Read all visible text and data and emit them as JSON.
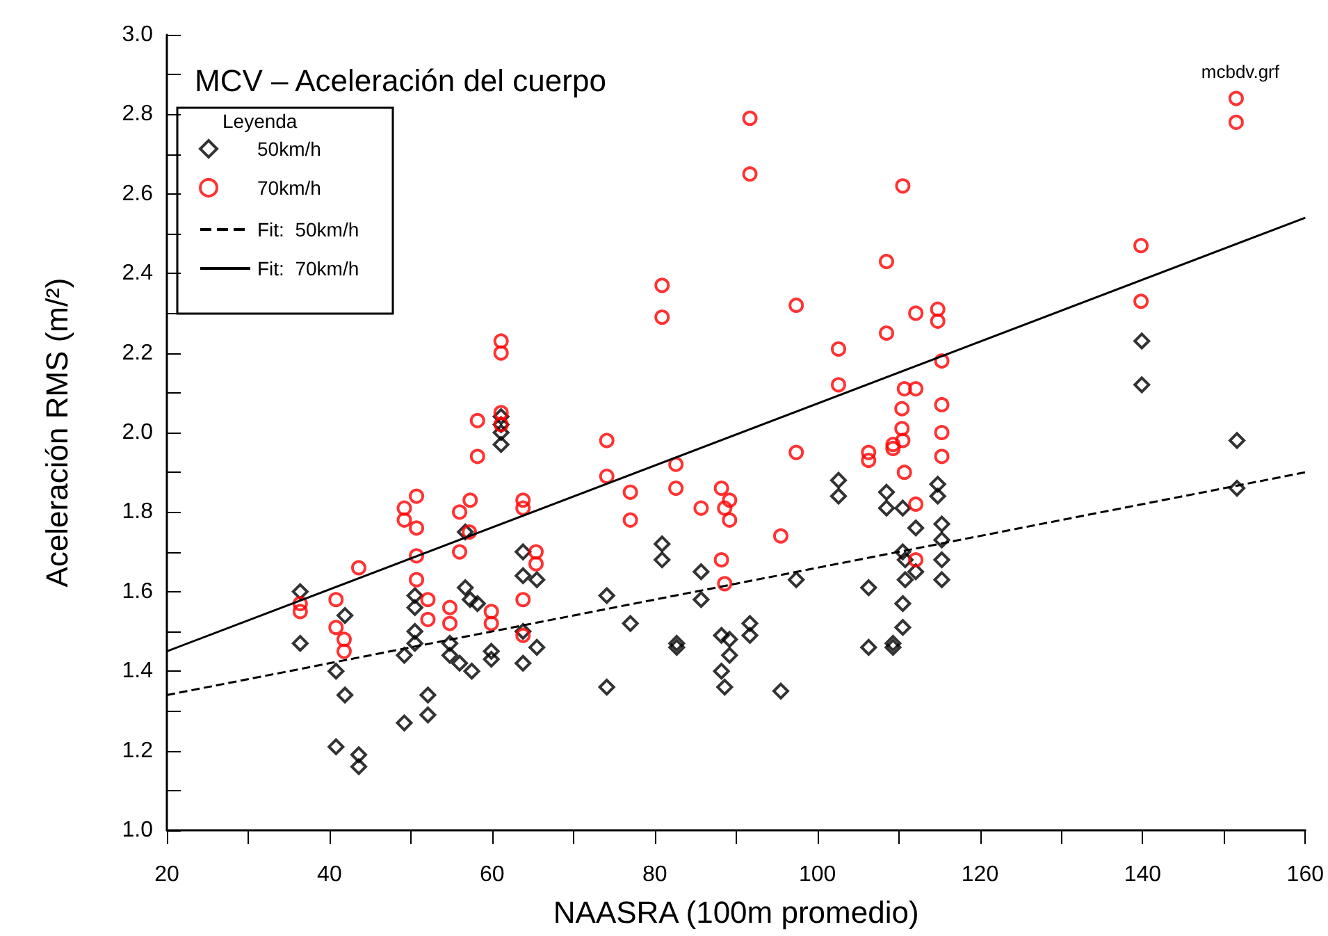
{
  "chart_data": {
    "type": "scatter",
    "title": "MCV – Aceleración del cuerpo",
    "xlabel": "NAASRA (100m promedio)",
    "ylabel": "Aceleración RMS (m/²)",
    "legend_title": "Leyenda",
    "legend": "top left",
    "grid": false,
    "annotations": [
      "mcbdv.grf"
    ],
    "xlim": [
      20,
      160
    ],
    "xticks": [
      20,
      {
        "value": 30,
        "label": null
      },
      40,
      {
        "value": 50,
        "label": null
      },
      60,
      {
        "value": 70,
        "label": null
      },
      80,
      {
        "value": 90,
        "label": null
      },
      100,
      {
        "value": 110,
        "label": null
      },
      120,
      {
        "value": 130,
        "label": null
      },
      140,
      {
        "value": 150,
        "label": null
      },
      160
    ],
    "ylim": [
      1.0,
      3.0
    ],
    "yticks": [
      {
        "value": 1.0,
        "label": "1.0"
      },
      {
        "value": 1.1,
        "label": null
      },
      1.2,
      {
        "value": 1.3,
        "label": null
      },
      1.4,
      {
        "value": 1.5,
        "label": null
      },
      1.6,
      {
        "value": 1.7,
        "label": null
      },
      1.8,
      {
        "value": 1.9,
        "label": null
      },
      {
        "value": 2.0,
        "label": "2.0"
      },
      {
        "value": 2.1,
        "label": null
      },
      2.2,
      {
        "value": 2.3,
        "label": null
      },
      2.4,
      {
        "value": 2.5,
        "label": null
      },
      2.6,
      {
        "value": 2.7,
        "label": null
      },
      2.8,
      {
        "value": 2.9,
        "label": null
      },
      {
        "value": 3.0,
        "label": "3.0"
      }
    ],
    "series": [
      {
        "name": "50km/h",
        "type": "scatter",
        "marker": "diamond",
        "color": "#000000",
        "x": [
          36.4,
          36.4,
          41.9,
          40.8,
          41.9,
          40.8,
          43.6,
          43.6,
          49.2,
          49.2,
          50.5,
          50.5,
          50.5,
          50.5,
          52.1,
          52.1,
          54.8,
          54.8,
          56.0,
          57.5,
          56.7,
          57.3,
          58.2,
          56.7,
          59.9,
          59.9,
          61.1,
          61.1,
          61.1,
          61.1,
          63.8,
          63.8,
          65.5,
          63.8,
          65.5,
          63.8,
          74.1,
          74.1,
          77.0,
          80.9,
          80.9,
          82.7,
          82.7,
          85.7,
          85.7,
          88.2,
          89.2,
          89.2,
          88.2,
          88.6,
          91.7,
          91.7,
          95.5,
          97.4,
          102.6,
          102.6,
          108.5,
          108.5,
          106.3,
          106.3,
          109.3,
          109.3,
          110.5,
          110.5,
          110.8,
          110.8,
          110.5,
          110.5,
          112.1,
          112.1,
          114.8,
          114.8,
          115.3,
          115.3,
          115.3,
          115.3,
          139.9,
          139.9,
          151.6,
          151.6
        ],
        "values": [
          1.6,
          1.47,
          1.54,
          1.4,
          1.34,
          1.21,
          1.19,
          1.16,
          1.27,
          1.44,
          1.59,
          1.56,
          1.5,
          1.47,
          1.34,
          1.29,
          1.47,
          1.44,
          1.42,
          1.4,
          1.61,
          1.58,
          1.57,
          1.75,
          1.45,
          1.43,
          2.04,
          2.02,
          2.0,
          1.97,
          1.7,
          1.64,
          1.63,
          1.5,
          1.46,
          1.42,
          1.59,
          1.36,
          1.52,
          1.72,
          1.68,
          1.47,
          1.46,
          1.65,
          1.58,
          1.49,
          1.48,
          1.44,
          1.4,
          1.36,
          1.52,
          1.49,
          1.35,
          1.63,
          1.88,
          1.84,
          1.85,
          1.81,
          1.61,
          1.46,
          1.47,
          1.46,
          1.81,
          1.7,
          1.68,
          1.63,
          1.57,
          1.51,
          1.76,
          1.65,
          1.87,
          1.84,
          1.77,
          1.73,
          1.68,
          1.63,
          2.23,
          2.12,
          1.98,
          1.86
        ]
      },
      {
        "name": "70km/h",
        "type": "scatter",
        "marker": "circle",
        "color": "#ff0000",
        "x": [
          36.4,
          36.4,
          40.8,
          40.8,
          41.8,
          41.8,
          43.6,
          49.2,
          49.2,
          50.7,
          50.7,
          50.7,
          50.7,
          52.1,
          52.1,
          54.8,
          54.8,
          56.0,
          56.0,
          57.3,
          57.2,
          58.2,
          58.2,
          59.9,
          59.9,
          61.1,
          61.1,
          61.1,
          61.1,
          63.8,
          63.8,
          63.8,
          63.8,
          65.4,
          65.4,
          91.7,
          91.7,
          80.9,
          80.9,
          97.4,
          102.6,
          102.6,
          74.1,
          74.1,
          77.0,
          77.0,
          82.6,
          82.6,
          85.7,
          88.2,
          89.2,
          88.6,
          89.2,
          95.5,
          88.2,
          88.6,
          97.4,
          108.5,
          112.1,
          114.8,
          114.8,
          108.5,
          115.3,
          110.7,
          112.1,
          110.4,
          115.3,
          110.4,
          115.3,
          110.5,
          109.3,
          109.3,
          106.3,
          106.3,
          110.7,
          115.3,
          112.1,
          112.1,
          110.5,
          139.8,
          139.8,
          151.5,
          151.5
        ],
        "values": [
          1.57,
          1.55,
          1.58,
          1.51,
          1.48,
          1.45,
          1.66,
          1.81,
          1.78,
          1.84,
          1.76,
          1.69,
          1.63,
          1.58,
          1.53,
          1.56,
          1.52,
          1.8,
          1.7,
          1.83,
          1.75,
          2.03,
          1.94,
          1.55,
          1.52,
          2.23,
          2.2,
          2.05,
          2.02,
          1.83,
          1.81,
          1.58,
          1.49,
          1.7,
          1.67,
          2.79,
          2.65,
          2.37,
          2.29,
          2.32,
          2.21,
          2.12,
          1.98,
          1.89,
          1.85,
          1.78,
          1.92,
          1.86,
          1.81,
          1.86,
          1.83,
          1.81,
          1.78,
          1.74,
          1.68,
          1.62,
          1.95,
          2.43,
          2.3,
          2.31,
          2.28,
          2.25,
          2.18,
          2.11,
          2.11,
          2.06,
          2.07,
          2.01,
          2.0,
          1.98,
          1.97,
          1.96,
          1.95,
          1.93,
          1.9,
          1.94,
          1.82,
          1.68,
          2.62,
          2.47,
          2.33,
          2.84,
          2.78
        ]
      },
      {
        "name": "Fit:  50km/h",
        "type": "line",
        "marker": "none",
        "line_style": "dashed",
        "color": "#000000",
        "x": [
          20,
          160
        ],
        "values": [
          1.34,
          1.9
        ]
      },
      {
        "name": "Fit:  70km/h",
        "type": "line",
        "marker": "none",
        "line_style": "solid",
        "color": "#000000",
        "x": [
          20,
          160
        ],
        "values": [
          1.45,
          2.54
        ]
      }
    ]
  }
}
